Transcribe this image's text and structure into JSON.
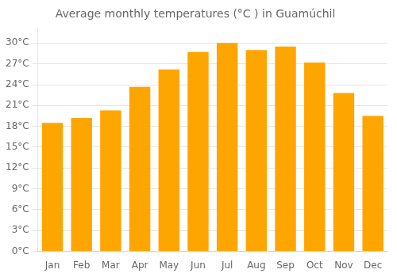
{
  "chart_data": {
    "type": "bar",
    "title": "Average monthly temperatures (°C ) in Guamúchil",
    "categories": [
      "Jan",
      "Feb",
      "Mar",
      "Apr",
      "May",
      "Jun",
      "Jul",
      "Aug",
      "Sep",
      "Oct",
      "Nov",
      "Dec"
    ],
    "values": [
      18.5,
      19.2,
      20.3,
      23.7,
      26.2,
      28.7,
      30.0,
      29.0,
      29.5,
      27.2,
      22.8,
      19.5
    ],
    "color": "#FFA500",
    "ylim": [
      0,
      32
    ],
    "yticks": [
      {
        "value": 0,
        "label": "0°C"
      },
      {
        "value": 3,
        "label": "3°C"
      },
      {
        "value": 6,
        "label": "6°C"
      },
      {
        "value": 9,
        "label": "9°C"
      },
      {
        "value": 12,
        "label": "12°C"
      },
      {
        "value": 15,
        "label": "15°C"
      },
      {
        "value": 18,
        "label": "18°C"
      },
      {
        "value": 21,
        "label": "21°C"
      },
      {
        "value": 24,
        "label": "24°C"
      },
      {
        "value": 27,
        "label": "27°C"
      },
      {
        "value": 30,
        "label": "30°C"
      }
    ],
    "grid": true
  }
}
